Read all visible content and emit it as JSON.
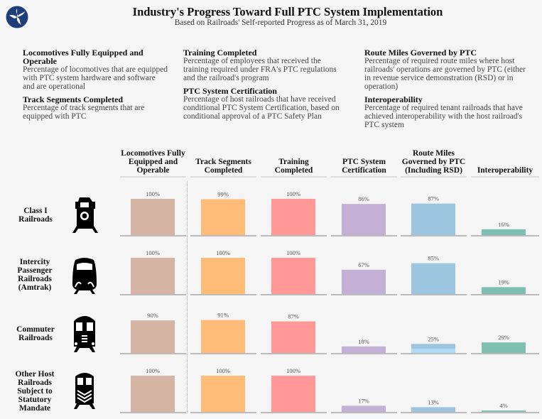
{
  "header": {
    "title": "Industry's Progress Toward Full PTC System Implementation",
    "subtitle": "Based on Railroads' Self-reported Progress as of March 31, 2019",
    "logo": "usdot-logo"
  },
  "definitions": [
    [
      {
        "title": "Locomotives Fully Equipped and Operable",
        "text": "Percentage of locomotives that are equipped with PTC system hardware and software and are operational"
      },
      {
        "title": "Track Segments Completed",
        "text": "Percentage of track segments that are equipped with PTC"
      }
    ],
    [
      {
        "title": "Training Completed",
        "text": "Percentage of employees that received the training required under FRA's PTC regulations and the railroad's program"
      },
      {
        "title": "PTC System Certification",
        "text": "Percentage of host railroads that have received conditional PTC System Certification, based on conditional approval of a PTC Safety Plan"
      }
    ],
    [
      {
        "title": "Route Miles Governed by PTC",
        "text": "Percentage of required route miles where host railroads' operations are governed by PTC (either in revenue service demonstration (RSD) or in operation)"
      },
      {
        "title": "Interoperability",
        "text": "Percentage of required tenant railroads that have achieved interoperability with the host railroad's PTC system"
      }
    ]
  ],
  "chart_data": {
    "type": "bar",
    "layout": "small-multiples grid",
    "columns": [
      "Locomotives Fully Equipped and Operable",
      "Track Segments Completed",
      "Training Completed",
      "PTC System Certification",
      "Route Miles Governed by PTC (Including RSD)",
      "Interoperability"
    ],
    "colors": [
      "#d6b4a3",
      "#ffbb78",
      "#ff9896",
      "#c5b0d5",
      "#9ec5e0",
      "#7fbfb0"
    ],
    "rows": [
      {
        "name": "Class I Railroads",
        "icon": "freight-locomotive-icon",
        "values": [
          100,
          99,
          100,
          86,
          87,
          16
        ]
      },
      {
        "name": "Intercity Passenger Railroads (Amtrak)",
        "icon": "passenger-train-icon",
        "values": [
          100,
          100,
          100,
          67,
          85,
          19
        ]
      },
      {
        "name": "Commuter Railroads",
        "icon": "commuter-train-icon",
        "values": [
          90,
          91,
          87,
          18,
          25,
          29
        ],
        "rsd_portion_route_miles": 12
      },
      {
        "name": "Other Host Railroads Subject to Statutory Mandate",
        "icon": "locomotive-icon",
        "values": [
          100,
          100,
          100,
          17,
          13,
          4
        ]
      }
    ],
    "value_format": "percent",
    "ylim": [
      0,
      100
    ]
  }
}
